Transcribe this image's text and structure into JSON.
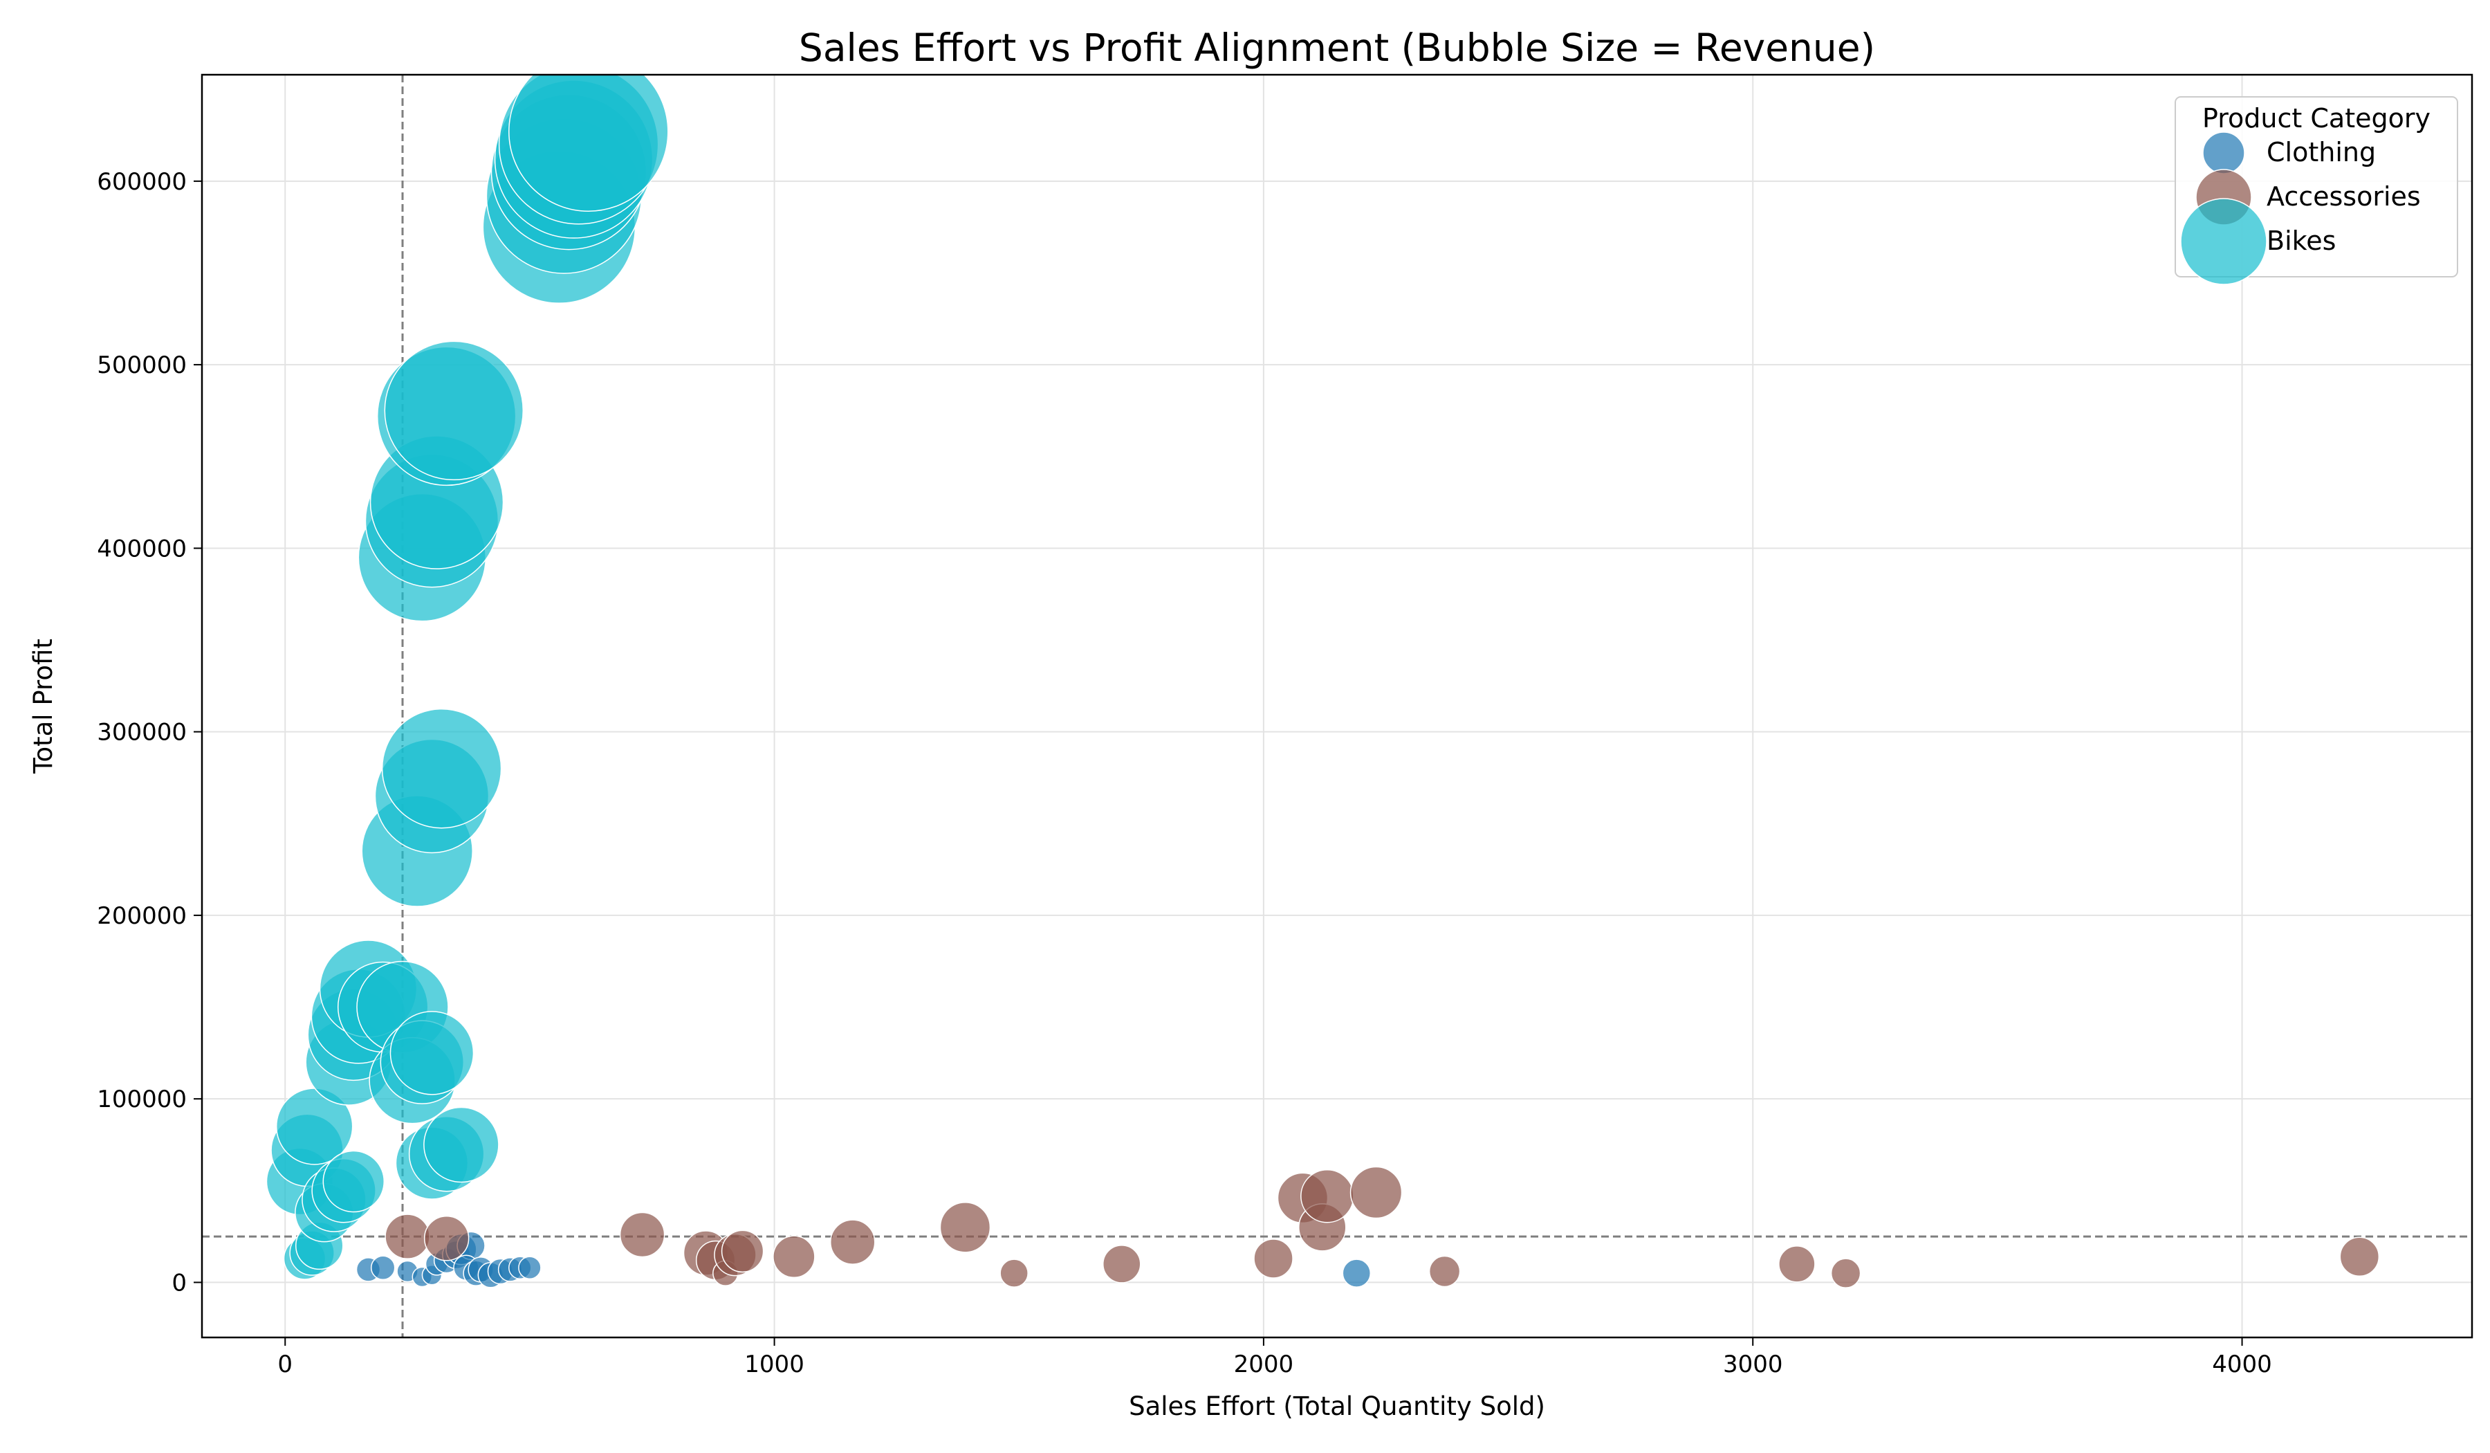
{
  "chart_data": {
    "type": "scatter",
    "title": "Sales Effort vs Profit Alignment (Bubble Size = Revenue)",
    "xlabel": "Sales Effort (Total Quantity Sold)",
    "ylabel": "Total Profit",
    "xlim": [
      -170,
      4470
    ],
    "ylim": [
      -30000,
      658000
    ],
    "x_ticks": [
      0,
      1000,
      2000,
      3000,
      4000
    ],
    "y_ticks": [
      0,
      100000,
      200000,
      300000,
      400000,
      500000,
      600000
    ],
    "grid": true,
    "reference_lines": {
      "x": 240,
      "y": 25000
    },
    "legend": {
      "title": "Product Category",
      "position": "top-right"
    },
    "size_encoding": "Revenue",
    "series": [
      {
        "name": "Clothing",
        "color": "#1f77b4",
        "opacity": 0.7,
        "points": [
          {
            "x": 170,
            "y": 7000,
            "r": 17
          },
          {
            "x": 200,
            "y": 8000,
            "r": 17
          },
          {
            "x": 250,
            "y": 6000,
            "r": 15
          },
          {
            "x": 280,
            "y": 3000,
            "r": 14
          },
          {
            "x": 300,
            "y": 4000,
            "r": 14
          },
          {
            "x": 310,
            "y": 10000,
            "r": 16
          },
          {
            "x": 330,
            "y": 12000,
            "r": 18
          },
          {
            "x": 350,
            "y": 15000,
            "r": 20
          },
          {
            "x": 360,
            "y": 18000,
            "r": 22
          },
          {
            "x": 380,
            "y": 20000,
            "r": 20
          },
          {
            "x": 370,
            "y": 8000,
            "r": 18
          },
          {
            "x": 390,
            "y": 5000,
            "r": 18
          },
          {
            "x": 400,
            "y": 7000,
            "r": 18
          },
          {
            "x": 420,
            "y": 4000,
            "r": 18
          },
          {
            "x": 440,
            "y": 6000,
            "r": 18
          },
          {
            "x": 460,
            "y": 7000,
            "r": 17
          },
          {
            "x": 480,
            "y": 8000,
            "r": 16
          },
          {
            "x": 500,
            "y": 8000,
            "r": 16
          },
          {
            "x": 2190,
            "y": 5000,
            "r": 20
          }
        ]
      },
      {
        "name": "Accessories",
        "color": "#8c564b",
        "opacity": 0.7,
        "points": [
          {
            "x": 250,
            "y": 25000,
            "r": 32
          },
          {
            "x": 330,
            "y": 24000,
            "r": 32
          },
          {
            "x": 730,
            "y": 26000,
            "r": 32
          },
          {
            "x": 860,
            "y": 16000,
            "r": 32
          },
          {
            "x": 880,
            "y": 12000,
            "r": 28
          },
          {
            "x": 900,
            "y": 5000,
            "r": 18
          },
          {
            "x": 920,
            "y": 15000,
            "r": 30
          },
          {
            "x": 935,
            "y": 17000,
            "r": 30
          },
          {
            "x": 1040,
            "y": 14000,
            "r": 30
          },
          {
            "x": 1160,
            "y": 22000,
            "r": 32
          },
          {
            "x": 1390,
            "y": 30000,
            "r": 36
          },
          {
            "x": 1490,
            "y": 5000,
            "r": 20
          },
          {
            "x": 1710,
            "y": 10000,
            "r": 27
          },
          {
            "x": 2020,
            "y": 13000,
            "r": 28
          },
          {
            "x": 2080,
            "y": 46000,
            "r": 36
          },
          {
            "x": 2120,
            "y": 30000,
            "r": 34
          },
          {
            "x": 2130,
            "y": 47000,
            "r": 38
          },
          {
            "x": 2230,
            "y": 49000,
            "r": 37
          },
          {
            "x": 2370,
            "y": 6000,
            "r": 22
          },
          {
            "x": 3090,
            "y": 10000,
            "r": 26
          },
          {
            "x": 3190,
            "y": 5000,
            "r": 21
          },
          {
            "x": 4240,
            "y": 14000,
            "r": 28
          }
        ]
      },
      {
        "name": "Bikes",
        "color": "#17becf",
        "opacity": 0.7,
        "points": [
          {
            "x": 40,
            "y": 13000,
            "r": 30
          },
          {
            "x": 55,
            "y": 16000,
            "r": 32
          },
          {
            "x": 70,
            "y": 20000,
            "r": 34
          },
          {
            "x": 30,
            "y": 55000,
            "r": 48
          },
          {
            "x": 45,
            "y": 72000,
            "r": 52
          },
          {
            "x": 60,
            "y": 85000,
            "r": 55
          },
          {
            "x": 80,
            "y": 38000,
            "r": 42
          },
          {
            "x": 100,
            "y": 45000,
            "r": 46
          },
          {
            "x": 120,
            "y": 50000,
            "r": 46
          },
          {
            "x": 140,
            "y": 55000,
            "r": 44
          },
          {
            "x": 130,
            "y": 120000,
            "r": 62
          },
          {
            "x": 140,
            "y": 135000,
            "r": 66
          },
          {
            "x": 150,
            "y": 145000,
            "r": 68
          },
          {
            "x": 170,
            "y": 160000,
            "r": 70
          },
          {
            "x": 200,
            "y": 150000,
            "r": 65
          },
          {
            "x": 240,
            "y": 150000,
            "r": 66
          },
          {
            "x": 260,
            "y": 110000,
            "r": 62
          },
          {
            "x": 280,
            "y": 120000,
            "r": 60
          },
          {
            "x": 300,
            "y": 125000,
            "r": 60
          },
          {
            "x": 300,
            "y": 65000,
            "r": 52
          },
          {
            "x": 330,
            "y": 70000,
            "r": 54
          },
          {
            "x": 360,
            "y": 75000,
            "r": 54
          },
          {
            "x": 270,
            "y": 235000,
            "r": 80
          },
          {
            "x": 300,
            "y": 265000,
            "r": 82
          },
          {
            "x": 320,
            "y": 280000,
            "r": 86
          },
          {
            "x": 280,
            "y": 395000,
            "r": 92
          },
          {
            "x": 300,
            "y": 415000,
            "r": 96
          },
          {
            "x": 310,
            "y": 425000,
            "r": 96
          },
          {
            "x": 330,
            "y": 472000,
            "r": 100
          },
          {
            "x": 345,
            "y": 475000,
            "r": 100
          },
          {
            "x": 560,
            "y": 575000,
            "r": 110
          },
          {
            "x": 570,
            "y": 592000,
            "r": 112
          },
          {
            "x": 580,
            "y": 605000,
            "r": 112
          },
          {
            "x": 590,
            "y": 612000,
            "r": 114
          },
          {
            "x": 600,
            "y": 620000,
            "r": 115
          },
          {
            "x": 620,
            "y": 627000,
            "r": 115
          }
        ]
      }
    ]
  }
}
